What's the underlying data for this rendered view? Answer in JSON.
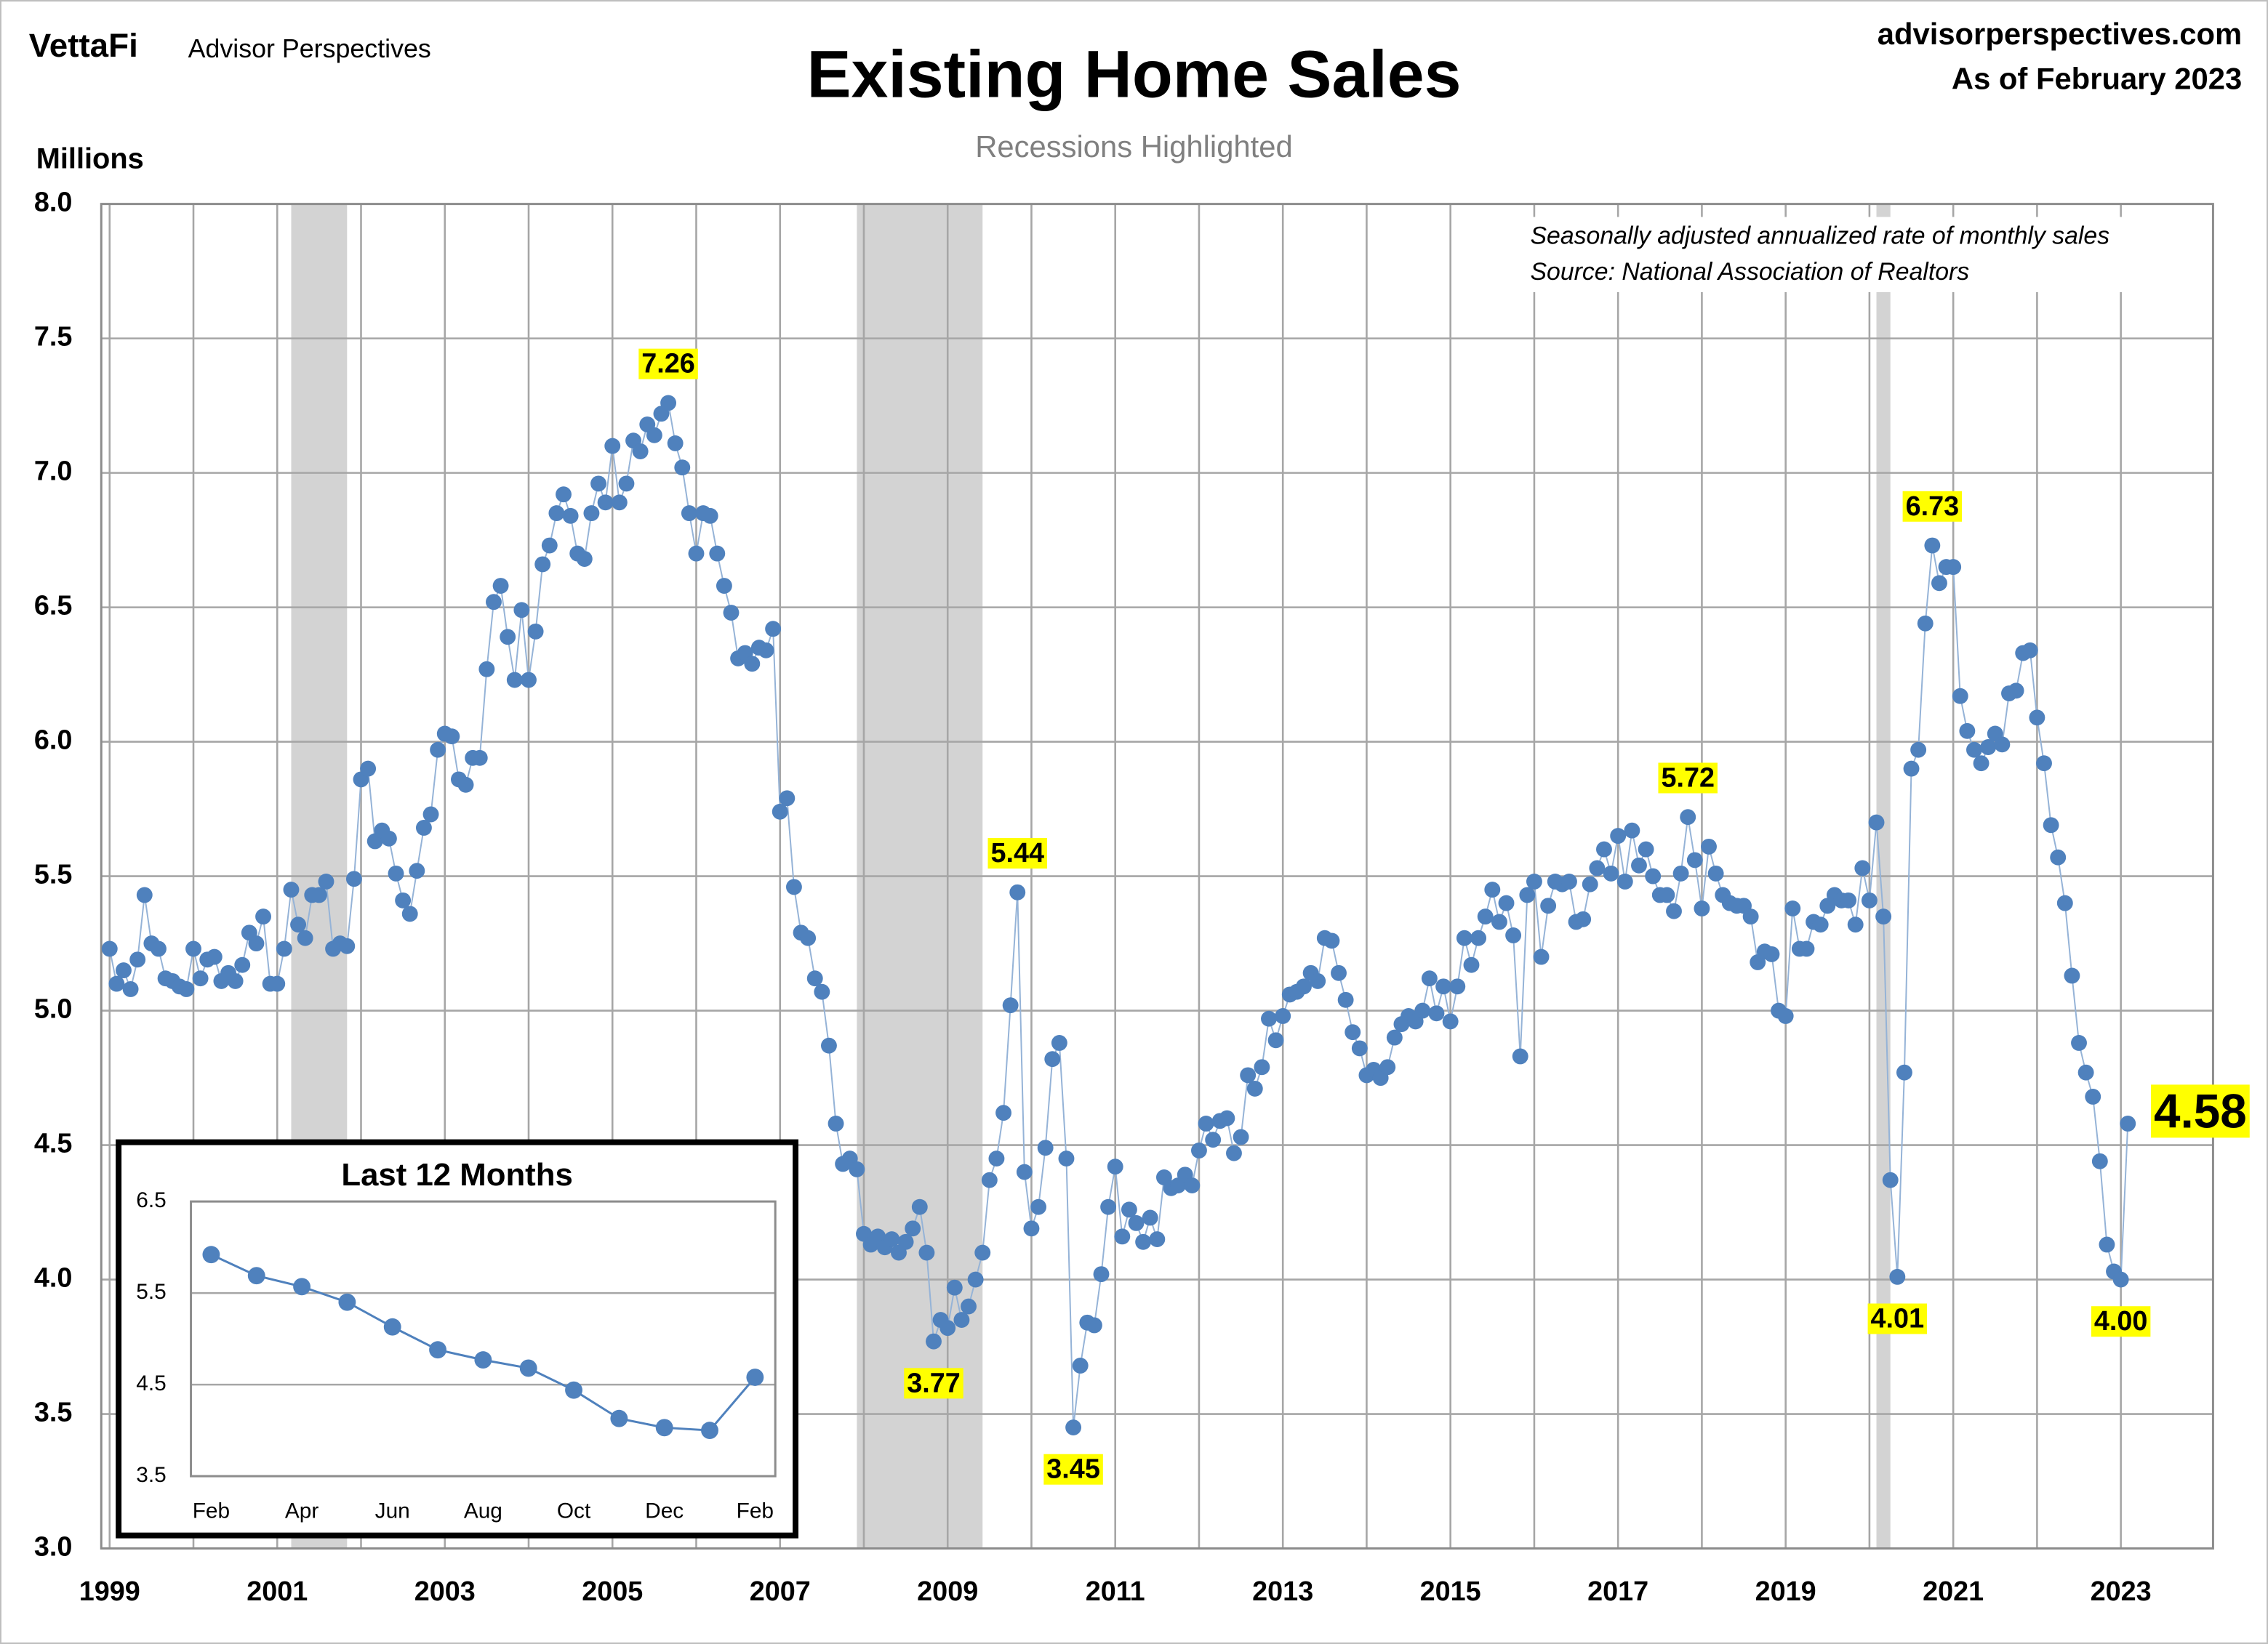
{
  "chart_data": [
    {
      "type": "line",
      "logo": "VettaFi",
      "publisher": "Advisor Perspectives",
      "title": "Existing Home Sales",
      "subtitle": "Recessions Highlighted",
      "website": "advisorperspectives.com",
      "date_note": "As of February 2023",
      "y_label": "Millions",
      "notes": [
        "Seasonally adjusted annualized rate of monthly sales",
        "Source: National Association of Realtors"
      ],
      "color": "#4f81bd",
      "line_color": "#95b3d7",
      "grid": true,
      "recession_color": "#d3d3d3",
      "recessions": [
        [
          "2001-03",
          "2001-11"
        ],
        [
          "2007-12",
          "2009-06"
        ],
        [
          "2020-02",
          "2020-04"
        ]
      ],
      "xlim": [
        1998.9,
        2024.1
      ],
      "xticks": [
        1999,
        2001,
        2003,
        2005,
        2007,
        2009,
        2011,
        2013,
        2015,
        2017,
        2019,
        2021,
        2023
      ],
      "x_minor_ticks": [
        2000,
        2002,
        2004,
        2006,
        2008,
        2010,
        2012,
        2014,
        2016,
        2018,
        2020,
        2022
      ],
      "ylim": [
        3,
        8
      ],
      "yticks": [
        {
          "value": 3,
          "label": "3.0"
        },
        3.5,
        {
          "value": 4,
          "label": "4.0"
        },
        4.5,
        {
          "value": 5,
          "label": "5.0"
        },
        5.5,
        {
          "value": 6,
          "label": "6.0"
        },
        6.5,
        {
          "value": 7,
          "label": "7.0"
        },
        7.5,
        {
          "value": 8,
          "label": "8.0"
        }
      ],
      "x": [
        "1999-01",
        "1999-02",
        "1999-03",
        "1999-04",
        "1999-05",
        "1999-06",
        "1999-07",
        "1999-08",
        "1999-09",
        "1999-10",
        "1999-11",
        "1999-12",
        "2000-01",
        "2000-02",
        "2000-03",
        "2000-04",
        "2000-05",
        "2000-06",
        "2000-07",
        "2000-08",
        "2000-09",
        "2000-10",
        "2000-11",
        "2000-12",
        "2001-01",
        "2001-02",
        "2001-03",
        "2001-04",
        "2001-05",
        "2001-06",
        "2001-07",
        "2001-08",
        "2001-09",
        "2001-10",
        "2001-11",
        "2001-12",
        "2002-01",
        "2002-02",
        "2002-03",
        "2002-04",
        "2002-05",
        "2002-06",
        "2002-07",
        "2002-08",
        "2002-09",
        "2002-10",
        "2002-11",
        "2002-12",
        "2003-01",
        "2003-02",
        "2003-03",
        "2003-04",
        "2003-05",
        "2003-06",
        "2003-07",
        "2003-08",
        "2003-09",
        "2003-10",
        "2003-11",
        "2003-12",
        "2004-01",
        "2004-02",
        "2004-03",
        "2004-04",
        "2004-05",
        "2004-06",
        "2004-07",
        "2004-08",
        "2004-09",
        "2004-10",
        "2004-11",
        "2004-12",
        "2005-01",
        "2005-02",
        "2005-03",
        "2005-04",
        "2005-05",
        "2005-06",
        "2005-07",
        "2005-08",
        "2005-09",
        "2005-10",
        "2005-11",
        "2005-12",
        "2006-01",
        "2006-02",
        "2006-03",
        "2006-04",
        "2006-05",
        "2006-06",
        "2006-07",
        "2006-08",
        "2006-09",
        "2006-10",
        "2006-11",
        "2006-12",
        "2007-01",
        "2007-02",
        "2007-03",
        "2007-04",
        "2007-05",
        "2007-06",
        "2007-07",
        "2007-08",
        "2007-09",
        "2007-10",
        "2007-11",
        "2007-12",
        "2008-01",
        "2008-02",
        "2008-03",
        "2008-04",
        "2008-05",
        "2008-06",
        "2008-07",
        "2008-08",
        "2008-09",
        "2008-10",
        "2008-11",
        "2008-12",
        "2009-01",
        "2009-02",
        "2009-03",
        "2009-04",
        "2009-05",
        "2009-06",
        "2009-07",
        "2009-08",
        "2009-09",
        "2009-10",
        "2009-11",
        "2009-12",
        "2010-01",
        "2010-02",
        "2010-03",
        "2010-04",
        "2010-05",
        "2010-06",
        "2010-07",
        "2010-08",
        "2010-09",
        "2010-10",
        "2010-11",
        "2010-12",
        "2011-01",
        "2011-02",
        "2011-03",
        "2011-04",
        "2011-05",
        "2011-06",
        "2011-07",
        "2011-08",
        "2011-09",
        "2011-10",
        "2011-11",
        "2011-12",
        "2012-01",
        "2012-02",
        "2012-03",
        "2012-04",
        "2012-05",
        "2012-06",
        "2012-07",
        "2012-08",
        "2012-09",
        "2012-10",
        "2012-11",
        "2012-12",
        "2013-01",
        "2013-02",
        "2013-03",
        "2013-04",
        "2013-05",
        "2013-06",
        "2013-07",
        "2013-08",
        "2013-09",
        "2013-10",
        "2013-11",
        "2013-12",
        "2014-01",
        "2014-02",
        "2014-03",
        "2014-04",
        "2014-05",
        "2014-06",
        "2014-07",
        "2014-08",
        "2014-09",
        "2014-10",
        "2014-11",
        "2014-12",
        "2015-01",
        "2015-02",
        "2015-03",
        "2015-04",
        "2015-05",
        "2015-06",
        "2015-07",
        "2015-08",
        "2015-09",
        "2015-10",
        "2015-11",
        "2015-12",
        "2016-01",
        "2016-02",
        "2016-03",
        "2016-04",
        "2016-05",
        "2016-06",
        "2016-07",
        "2016-08",
        "2016-09",
        "2016-10",
        "2016-11",
        "2016-12",
        "2017-01",
        "2017-02",
        "2017-03",
        "2017-04",
        "2017-05",
        "2017-06",
        "2017-07",
        "2017-08",
        "2017-09",
        "2017-10",
        "2017-11",
        "2017-12",
        "2018-01",
        "2018-02",
        "2018-03",
        "2018-04",
        "2018-05",
        "2018-06",
        "2018-07",
        "2018-08",
        "2018-09",
        "2018-10",
        "2018-11",
        "2018-12",
        "2019-01",
        "2019-02",
        "2019-03",
        "2019-04",
        "2019-05",
        "2019-06",
        "2019-07",
        "2019-08",
        "2019-09",
        "2019-10",
        "2019-11",
        "2019-12",
        "2020-01",
        "2020-02",
        "2020-03",
        "2020-04",
        "2020-05",
        "2020-06",
        "2020-07",
        "2020-08",
        "2020-09",
        "2020-10",
        "2020-11",
        "2020-12",
        "2021-01",
        "2021-02",
        "2021-03",
        "2021-04",
        "2021-05",
        "2021-06",
        "2021-07",
        "2021-08",
        "2021-09",
        "2021-10",
        "2021-11",
        "2021-12",
        "2022-01",
        "2022-02",
        "2022-03",
        "2022-04",
        "2022-05",
        "2022-06",
        "2022-07",
        "2022-08",
        "2022-09",
        "2022-10",
        "2022-11",
        "2022-12",
        "2023-01",
        "2023-02"
      ],
      "values": [
        5.23,
        5.1,
        5.15,
        5.08,
        5.19,
        5.43,
        5.25,
        5.23,
        5.12,
        5.11,
        5.09,
        5.08,
        5.23,
        5.12,
        5.19,
        5.2,
        5.11,
        5.14,
        5.11,
        5.17,
        5.29,
        5.25,
        5.35,
        5.1,
        5.1,
        5.23,
        5.45,
        5.32,
        5.27,
        5.43,
        5.43,
        5.48,
        5.23,
        5.25,
        5.24,
        5.49,
        5.86,
        5.9,
        5.63,
        5.67,
        5.64,
        5.51,
        5.41,
        5.36,
        5.52,
        5.68,
        5.73,
        5.97,
        6.03,
        6.02,
        5.86,
        5.84,
        5.94,
        5.94,
        6.27,
        6.52,
        6.58,
        6.39,
        6.23,
        6.49,
        6.23,
        6.41,
        6.66,
        6.73,
        6.85,
        6.92,
        6.84,
        6.7,
        6.68,
        6.85,
        6.96,
        6.89,
        7.1,
        6.89,
        6.96,
        7.12,
        7.08,
        7.18,
        7.14,
        7.22,
        7.26,
        7.11,
        7.02,
        6.85,
        6.7,
        6.85,
        6.84,
        6.7,
        6.58,
        6.48,
        6.31,
        6.33,
        6.29,
        6.35,
        6.34,
        6.42,
        5.74,
        5.79,
        5.46,
        5.29,
        5.27,
        5.12,
        5.07,
        4.87,
        4.58,
        4.43,
        4.45,
        4.41,
        4.17,
        4.13,
        4.16,
        4.12,
        4.15,
        4.1,
        4.14,
        4.19,
        4.27,
        4.1,
        3.77,
        3.85,
        3.82,
        3.97,
        3.85,
        3.9,
        4.0,
        4.1,
        4.37,
        4.45,
        4.62,
        5.02,
        5.44,
        4.4,
        4.19,
        4.27,
        4.49,
        4.82,
        4.88,
        4.45,
        3.45,
        3.68,
        3.84,
        3.83,
        4.02,
        4.27,
        4.42,
        4.16,
        4.26,
        4.21,
        4.14,
        4.23,
        4.15,
        4.38,
        4.34,
        4.35,
        4.39,
        4.35,
        4.48,
        4.58,
        4.52,
        4.59,
        4.6,
        4.47,
        4.53,
        4.76,
        4.71,
        4.79,
        4.97,
        4.89,
        4.98,
        5.06,
        5.07,
        5.09,
        5.14,
        5.11,
        5.27,
        5.26,
        5.14,
        5.04,
        4.92,
        4.86,
        4.76,
        4.78,
        4.75,
        4.79,
        4.9,
        4.95,
        4.98,
        4.96,
        5.0,
        5.12,
        4.99,
        5.09,
        4.96,
        5.09,
        5.27,
        5.17,
        5.27,
        5.35,
        5.45,
        5.33,
        5.4,
        5.28,
        4.83,
        5.43,
        5.48,
        5.2,
        5.39,
        5.48,
        5.47,
        5.48,
        5.33,
        5.34,
        5.47,
        5.53,
        5.6,
        5.51,
        5.65,
        5.48,
        5.67,
        5.54,
        5.6,
        5.5,
        5.43,
        5.43,
        5.37,
        5.51,
        5.72,
        5.56,
        5.38,
        5.61,
        5.51,
        5.43,
        5.4,
        5.39,
        5.39,
        5.35,
        5.18,
        5.22,
        5.21,
        5.0,
        4.98,
        5.38,
        5.23,
        5.23,
        5.33,
        5.32,
        5.39,
        5.43,
        5.41,
        5.41,
        5.32,
        5.53,
        5.41,
        5.7,
        5.35,
        4.37,
        4.01,
        4.77,
        5.9,
        5.97,
        6.44,
        6.73,
        6.59,
        6.65,
        6.65,
        6.17,
        6.04,
        5.97,
        5.92,
        5.98,
        6.03,
        5.99,
        6.18,
        6.19,
        6.33,
        6.34,
        6.09,
        5.92,
        5.69,
        5.57,
        5.4,
        5.13,
        4.88,
        4.77,
        4.68,
        4.44,
        4.13,
        4.03,
        4.0,
        4.58
      ],
      "annotations": [
        {
          "x": "2005-09",
          "text": "7.26"
        },
        {
          "x": "2009-11",
          "text": "5.44"
        },
        {
          "x": "2008-11",
          "text": "3.77"
        },
        {
          "x": "2010-07",
          "text": "3.45"
        },
        {
          "x": "2017-11",
          "text": "5.72"
        },
        {
          "x": "2020-10",
          "text": "6.73"
        },
        {
          "x": "2020-05",
          "text": "4.01"
        },
        {
          "x": "2023-01",
          "text": "4.00"
        },
        {
          "x": "2023-02",
          "text": "4.58"
        }
      ],
      "annotation_color": "#ffff00"
    },
    {
      "type": "line",
      "title": "Last 12 Months",
      "color": "#4f81bd",
      "grid": true,
      "categories": [
        "Feb",
        null,
        "Apr",
        null,
        "Jun",
        null,
        "Aug",
        null,
        "Oct",
        null,
        "Dec",
        null,
        "Feb"
      ],
      "values": [
        5.92,
        5.69,
        5.57,
        5.4,
        5.13,
        4.88,
        4.77,
        4.68,
        4.44,
        4.13,
        4.03,
        4.0,
        4.58
      ],
      "ylim": [
        3.5,
        6.5
      ],
      "yticks": [
        3.5,
        4.5,
        5.5,
        6.5
      ]
    }
  ]
}
